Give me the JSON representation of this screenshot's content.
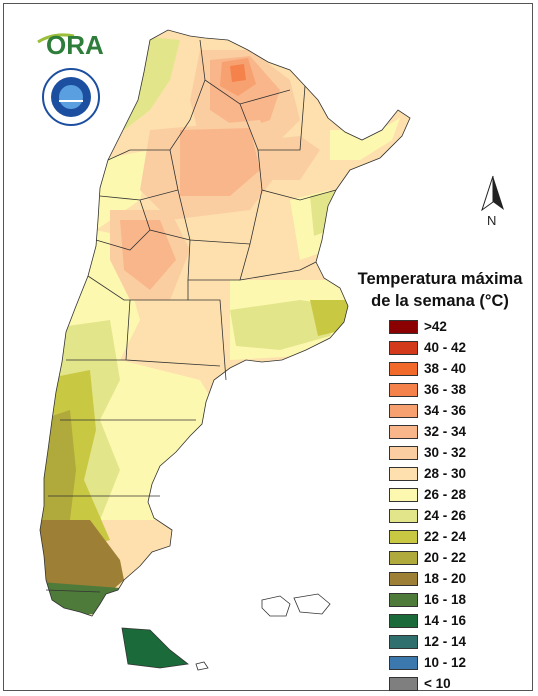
{
  "logo": {
    "text": "ORA",
    "seal_text": "SERVICIO METEOROLOGICO NACIONAL ARGENTINA"
  },
  "north_label": "N",
  "legend": {
    "title_line1": "Temperatura máxima",
    "title_line2": "de la semana (°C)",
    "items": [
      {
        "label": ">42",
        "color": "#8b0000"
      },
      {
        "label": "40 - 42",
        "color": "#d33a1c"
      },
      {
        "label": "38 - 40",
        "color": "#f26a2a"
      },
      {
        "label": "36 - 38",
        "color": "#f4824a"
      },
      {
        "label": "34 - 36",
        "color": "#f7a070"
      },
      {
        "label": "32 - 34",
        "color": "#f9b68a"
      },
      {
        "label": "30 - 32",
        "color": "#fbcea2"
      },
      {
        "label": "28 - 30",
        "color": "#fde0ad"
      },
      {
        "label": "26 - 28",
        "color": "#fdf8b0"
      },
      {
        "label": "24 - 26",
        "color": "#e3e58a"
      },
      {
        "label": "22 - 24",
        "color": "#c9c842"
      },
      {
        "label": "20 - 22",
        "color": "#b0a93c"
      },
      {
        "label": "18 - 20",
        "color": "#9e7f36"
      },
      {
        "label": "16 - 18",
        "color": "#4e7a3a"
      },
      {
        "label": "14 - 16",
        "color": "#1a6a3a"
      },
      {
        "label": "12 - 14",
        "color": "#2f6f6e"
      },
      {
        "label": "10 - 12",
        "color": "#3a78ae"
      },
      {
        "label": "< 10",
        "color": "#7f7f7f"
      }
    ]
  }
}
